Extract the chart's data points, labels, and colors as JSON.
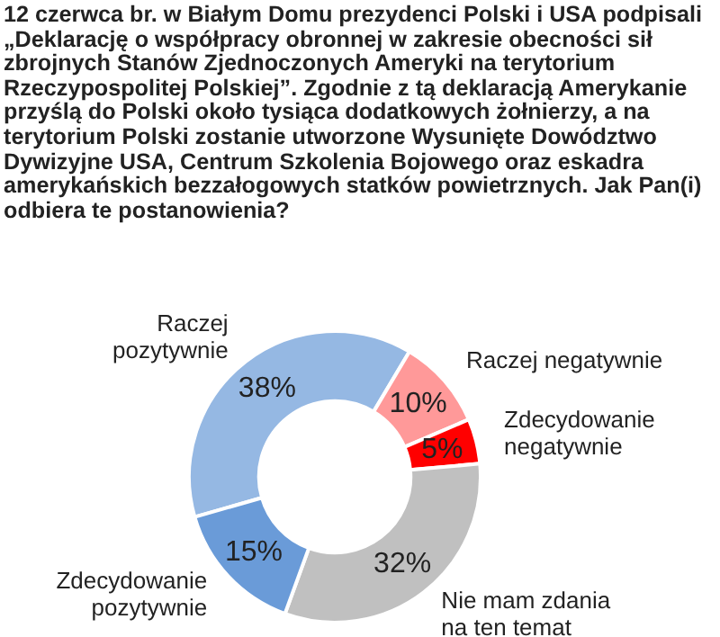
{
  "chart_data": {
    "type": "donut",
    "title": "12 czerwca br. w Białym Domu prezydenci Polski i USA podpisali „Deklarację o współpracy obronnej w zakresie obecności sił zbrojnych Stanów Zjednoczonych Ameryki na terytorium Rzeczypospolitej Polskiej”. Zgodnie z tą deklaracją Amerykanie przyślą do Polski około tysiąca dodatkowych żołnierzy, a na terytorium Polski zostanie utworzone Wysunięte Dowództwo Dywizyjne USA, Centrum Szkolenia Bojowego oraz eskadra amerykańskich bezzałogowych statków powietrznych. Jak Pan(i) odbiera te postanowienia?",
    "categories": [
      "Raczej pozytywnie",
      "Raczej negatywnie",
      "Zdecydowanie negatywnie",
      "Nie mam zdania na ten temat",
      "Zdecydowanie pozytywnie"
    ],
    "values": [
      38,
      10,
      5,
      32,
      15
    ],
    "value_labels": [
      "38%",
      "10%",
      "5%",
      "32%",
      "15%"
    ],
    "colors": [
      "#95b8e3",
      "#ff9999",
      "#ff0000",
      "#c0c0c0",
      "#6a9bd8"
    ],
    "legend": false
  }
}
